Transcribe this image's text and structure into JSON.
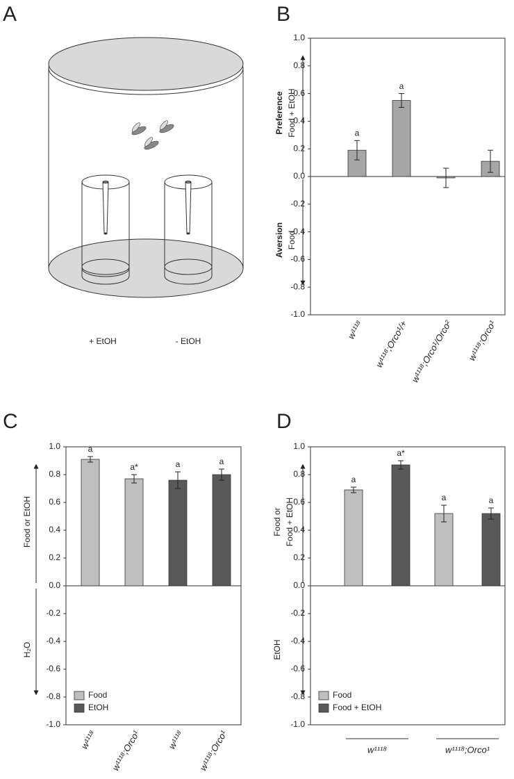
{
  "diagram": {
    "panel": "A",
    "labels": [
      "+ EtOH",
      "- EtOH"
    ]
  },
  "chart_data": [
    {
      "type": "bar",
      "panel": "B",
      "categories": [
        "w¹¹¹⁸",
        "w¹¹¹⁸;Orco¹/+",
        "w¹¹¹⁸;Orco¹/Orco²",
        "w¹¹¹⁸;Orco¹"
      ],
      "series": [
        {
          "color": "#a6a6a6",
          "values": [
            0.19,
            0.55,
            -0.01,
            0.11
          ],
          "errors": [
            0.07,
            0.05,
            0.07,
            0.08
          ],
          "letters": [
            "a",
            "a",
            null,
            null
          ]
        }
      ],
      "ylabel_top": {
        "title": "Preference",
        "lines": [
          "Food + EtOH"
        ]
      },
      "ylabel_bottom": {
        "title": "Aversion",
        "lines": [
          "Food"
        ]
      },
      "ylim": [
        -1,
        1
      ],
      "yticks": [
        {
          "value": -1,
          "label": "-1.0"
        },
        -0.8,
        -0.6,
        -0.4,
        -0.2,
        {
          "value": 0,
          "label": "0.0"
        },
        0.2,
        0.4,
        0.6,
        0.8,
        {
          "value": 1,
          "label": "1.0"
        }
      ]
    },
    {
      "type": "bar",
      "panel": "C",
      "categories": [
        "w¹¹¹⁸",
        "w¹¹¹⁸;Orco¹",
        "w¹¹¹⁸",
        "w¹¹¹⁸;Orco¹"
      ],
      "series": [
        {
          "name": "Food",
          "color": "#bfbfbf",
          "values": [
            0.91,
            0.77,
            null,
            null
          ],
          "errors": [
            0.02,
            0.03,
            null,
            null
          ],
          "letters": [
            "a",
            "a*",
            null,
            null
          ]
        },
        {
          "name": "EtOH",
          "color": "#595959",
          "values": [
            null,
            null,
            0.76,
            0.8
          ],
          "errors": [
            null,
            null,
            0.06,
            0.04
          ],
          "letters": [
            null,
            null,
            "a",
            "a"
          ]
        }
      ],
      "ylabel_top": {
        "lines": [
          "Food or EtOH"
        ]
      },
      "ylabel_bottom": {
        "lines": [
          "H₂O"
        ]
      },
      "legend": "lower left",
      "ylim": [
        -1,
        1
      ],
      "yticks": [
        {
          "value": -1,
          "label": "-1.0"
        },
        -0.8,
        -0.6,
        -0.4,
        -0.2,
        {
          "value": 0,
          "label": "0.0"
        },
        0.2,
        0.4,
        0.6,
        0.8,
        {
          "value": 1,
          "label": "1.0"
        }
      ]
    },
    {
      "type": "bar",
      "panel": "D",
      "grouped": true,
      "categories": [
        "w¹¹¹⁸",
        "w¹¹¹⁸;Orco¹"
      ],
      "series": [
        {
          "name": "Food",
          "color": "#bfbfbf",
          "values": [
            0.69,
            0.52
          ],
          "errors": [
            0.02,
            0.06
          ],
          "letters": [
            "a",
            "a"
          ]
        },
        {
          "name": "Food + EtOH",
          "color": "#595959",
          "values": [
            0.87,
            0.52
          ],
          "errors": [
            0.03,
            0.04
          ],
          "letters": [
            "a*",
            "a"
          ]
        }
      ],
      "ylabel_top": {
        "lines": [
          "Food or",
          "Food + EtOH"
        ]
      },
      "ylabel_bottom": {
        "lines": [
          "EtOH"
        ]
      },
      "legend": "lower left",
      "ylim": [
        -1,
        1
      ],
      "yticks": [
        {
          "value": -1,
          "label": "-1.0"
        },
        -0.8,
        -0.6,
        -0.4,
        -0.2,
        {
          "value": 0,
          "label": "0.0"
        },
        0.2,
        0.4,
        0.6,
        0.8,
        {
          "value": 1,
          "label": "1.0"
        }
      ]
    }
  ]
}
